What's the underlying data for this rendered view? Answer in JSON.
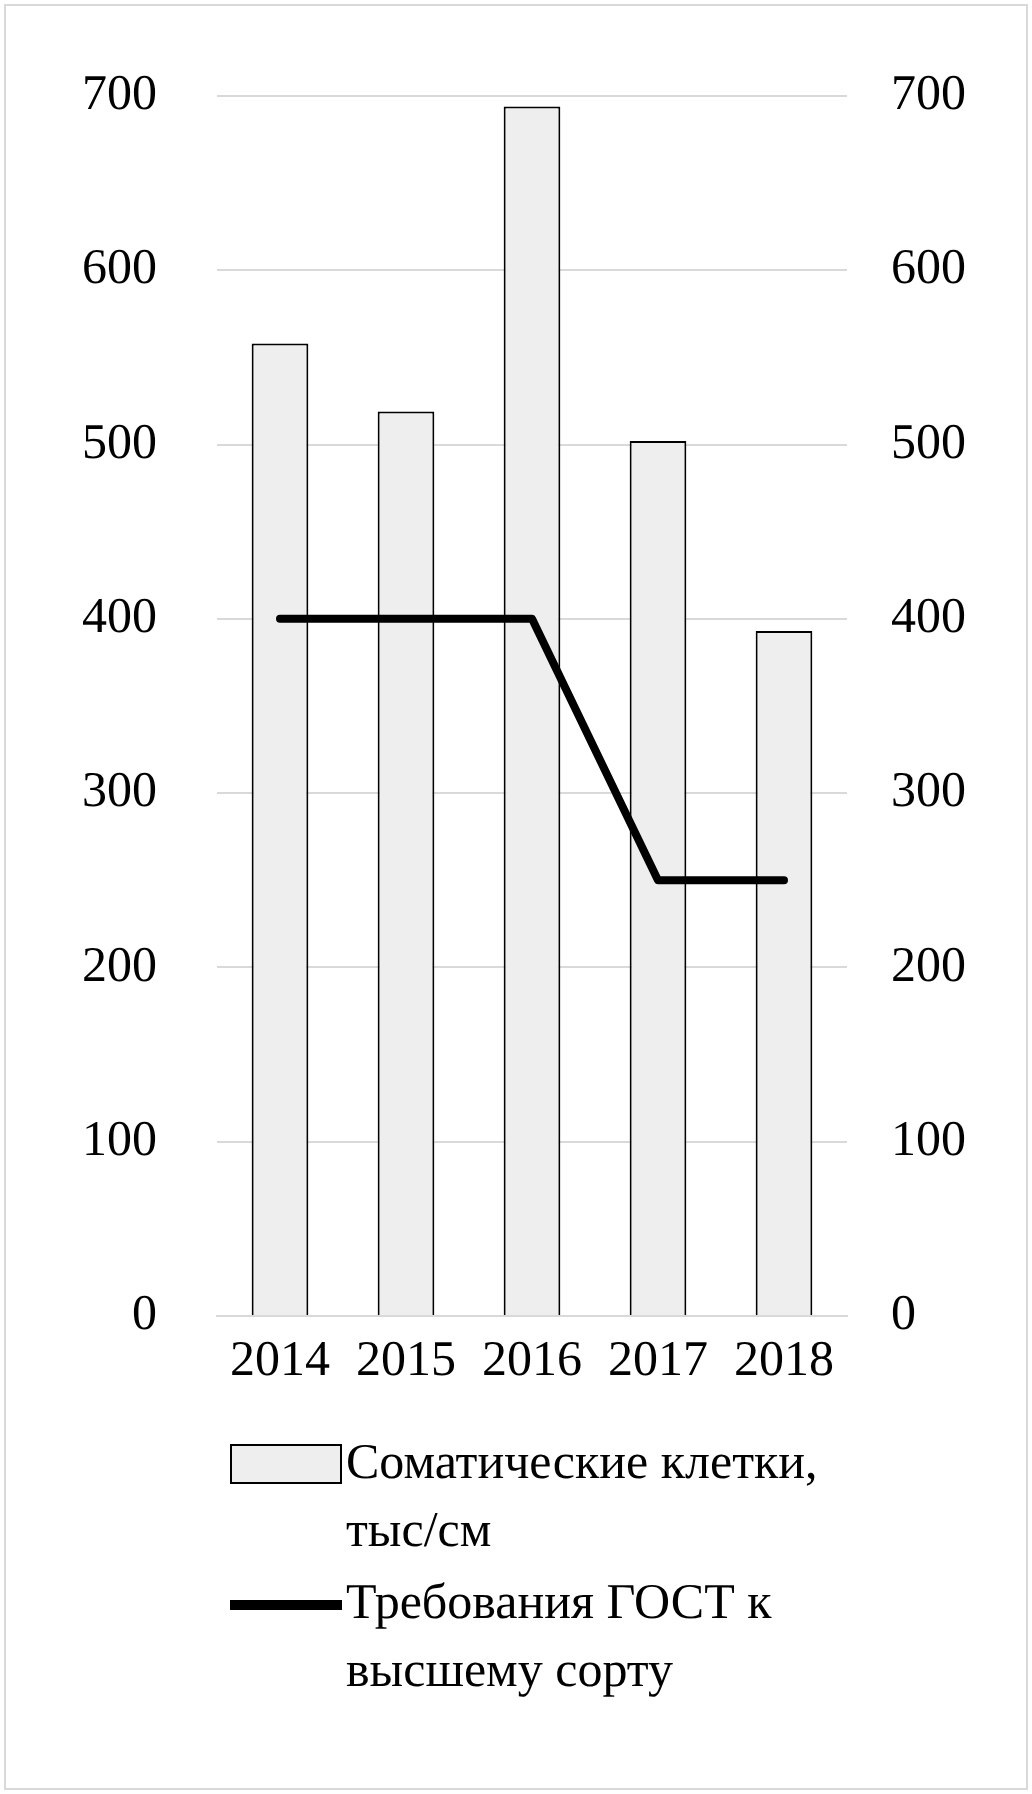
{
  "chart_data": {
    "type": "bar",
    "categories": [
      "2014",
      "2015",
      "2016",
      "2017",
      "2018"
    ],
    "series": [
      {
        "name": "Соматические клетки, тыс/см",
        "color": "#eeeeee",
        "values": [
          558,
          519,
          694,
          502,
          393
        ]
      },
      {
        "name": "Требования ГОСТ к высшему сорту",
        "type": "line",
        "color": "#000000",
        "values": [
          400,
          400,
          400,
          250,
          250
        ]
      }
    ],
    "ylim": [
      0,
      700
    ],
    "yticks": [
      0,
      100,
      200,
      300,
      400,
      500,
      600,
      700
    ],
    "y2lim": [
      0,
      700
    ],
    "y2ticks": [
      0,
      100,
      200,
      300,
      400,
      500,
      600,
      700
    ],
    "grid": "y",
    "legend": "bottom",
    "marker": "none"
  }
}
